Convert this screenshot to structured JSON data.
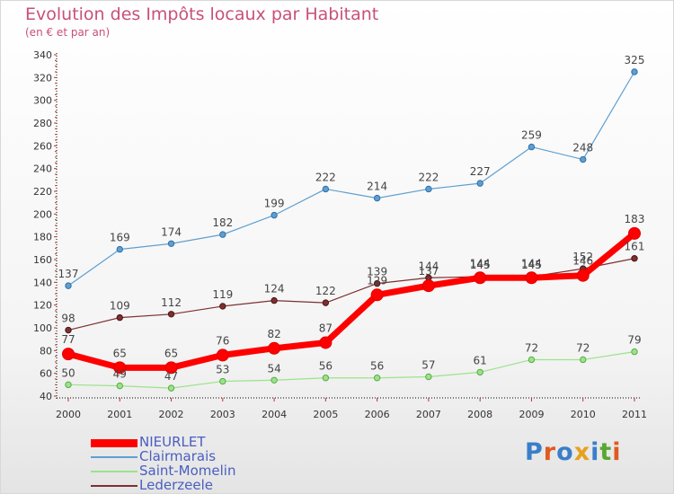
{
  "chart": {
    "title": "Evolution des Impôts locaux par Habitant",
    "subtitle": "(en € et par an)"
  },
  "logo": {
    "text": "Proxiti"
  },
  "chart_data": {
    "type": "line",
    "title": "Evolution des Impôts locaux par Habitant",
    "subtitle": "(en € et par an)",
    "xlabel": "",
    "ylabel": "",
    "ylim": [
      40,
      340
    ],
    "yticks": [
      40,
      60,
      80,
      100,
      120,
      140,
      160,
      180,
      200,
      220,
      240,
      260,
      280,
      300,
      320,
      340
    ],
    "x": [
      "2000",
      "2001",
      "2002",
      "2003",
      "2004",
      "2005",
      "2006",
      "2007",
      "2008",
      "2009",
      "2010",
      "2011"
    ],
    "grid": false,
    "legend": "bottom-left",
    "series": [
      {
        "name": "NIEURLET",
        "color": "#ff0000",
        "values": [
          77,
          65,
          65,
          76,
          82,
          87,
          129,
          137,
          144,
          144,
          146,
          183
        ]
      },
      {
        "name": "Clairmarais",
        "color": "#5f9fd0",
        "values": [
          137,
          169,
          174,
          182,
          199,
          222,
          214,
          222,
          227,
          259,
          248,
          325
        ]
      },
      {
        "name": "Saint-Momelin",
        "color": "#9be38a",
        "values": [
          50,
          49,
          47,
          53,
          54,
          56,
          56,
          57,
          61,
          72,
          72,
          79
        ]
      },
      {
        "name": "Lederzeele",
        "color": "#7d3030",
        "values": [
          98,
          109,
          112,
          119,
          124,
          122,
          139,
          144,
          145,
          145,
          152,
          161
        ]
      }
    ]
  }
}
